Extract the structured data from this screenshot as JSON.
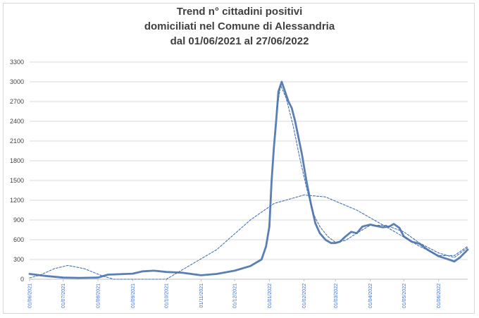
{
  "chart_data": {
    "type": "line",
    "title": [
      "Trend n° cittadini positivi",
      "domiciliati nel Comune di Alessandria",
      "dal 01/06/2021 al 27/06/2022"
    ],
    "xlabel": "",
    "ylabel": "",
    "ylim": [
      0,
      3300
    ],
    "yticks": [
      0,
      300,
      600,
      900,
      1200,
      1500,
      1800,
      2100,
      2400,
      2700,
      3000,
      3300
    ],
    "xticks": [
      "01/06/2021",
      "01/07/2021",
      "01/08/2021",
      "01/09/2021",
      "01/10/2021",
      "01/11/2021",
      "01/12/2021",
      "01/01/2022",
      "01/02/2022",
      "01/03/2022",
      "01/04/2022",
      "01/05/2022",
      "01/06/2022"
    ],
    "grid": "horizontal",
    "legend": "none",
    "colors": {
      "series": "#5a7fb5",
      "trend": "#4a72b0",
      "grid": "#d9d9d9",
      "ticks_x": "#4472c4"
    },
    "series": [
      {
        "style": "solid",
        "x": [
          "01/06/2021",
          "15/06/2021",
          "01/07/2021",
          "15/07/2021",
          "01/08/2021",
          "10/08/2021",
          "01/09/2021",
          "10/09/2021",
          "20/09/2021",
          "01/10/2021",
          "15/10/2021",
          "01/11/2021",
          "15/11/2021",
          "01/12/2021",
          "15/12/2021",
          "25/12/2021",
          "29/12/2021",
          "01/01/2022",
          "03/01/2022",
          "05/01/2022",
          "07/01/2022",
          "09/01/2022",
          "12/01/2022",
          "15/01/2022",
          "18/01/2022",
          "21/01/2022",
          "24/01/2022",
          "27/01/2022",
          "30/01/2022",
          "03/02/2022",
          "07/02/2022",
          "11/02/2022",
          "15/02/2022",
          "20/02/2022",
          "25/02/2022",
          "01/03/2022",
          "05/03/2022",
          "10/03/2022",
          "15/03/2022",
          "20/03/2022",
          "25/03/2022",
          "01/04/2022",
          "06/04/2022",
          "12/04/2022",
          "18/04/2022",
          "22/04/2022",
          "27/04/2022",
          "01/05/2022",
          "08/05/2022",
          "15/05/2022",
          "22/05/2022",
          "01/06/2022",
          "10/06/2022",
          "15/06/2022",
          "20/06/2022",
          "27/06/2022"
        ],
        "values": [
          80,
          50,
          25,
          20,
          25,
          70,
          85,
          120,
          130,
          110,
          100,
          60,
          80,
          130,
          200,
          300,
          500,
          800,
          1500,
          2000,
          2400,
          2850,
          3000,
          2850,
          2700,
          2600,
          2400,
          2150,
          1900,
          1500,
          1150,
          850,
          700,
          600,
          550,
          550,
          570,
          650,
          720,
          700,
          800,
          830,
          810,
          790,
          800,
          840,
          780,
          650,
          570,
          540,
          450,
          350,
          300,
          270,
          330,
          450
        ]
      },
      {
        "style": "dashed",
        "x": [
          "01/06/2021",
          "10/06/2021",
          "23/06/2021",
          "05/07/2021",
          "20/07/2021",
          "05/08/2021",
          "15/08/2021",
          "01/10/2021",
          "15/11/2021",
          "15/12/2021",
          "05/01/2022",
          "01/02/2022",
          "20/02/2022",
          "20/03/2022",
          "20/04/2022",
          "15/05/2022",
          "01/06/2022",
          "15/06/2022",
          "27/06/2022"
        ],
        "values": [
          20,
          60,
          160,
          210,
          160,
          50,
          0,
          0,
          450,
          900,
          1150,
          1280,
          1250,
          1050,
          750,
          500,
          360,
          360,
          500
        ]
      },
      {
        "style": "dashed",
        "x": [
          "08/01/2022",
          "11/01/2022",
          "16/01/2022",
          "22/01/2022",
          "28/01/2022",
          "03/02/2022",
          "09/02/2022",
          "15/02/2022",
          "22/02/2022",
          "01/03/2022",
          "10/03/2022",
          "20/03/2022",
          "01/04/2022",
          "15/04/2022",
          "01/05/2022",
          "15/05/2022",
          "01/06/2022",
          "15/06/2022",
          "27/06/2022"
        ],
        "values": [
          2600,
          2950,
          2750,
          2350,
          1850,
          1400,
          1000,
          800,
          650,
          560,
          590,
          700,
          820,
          820,
          720,
          550,
          400,
          330,
          480
        ]
      }
    ]
  }
}
